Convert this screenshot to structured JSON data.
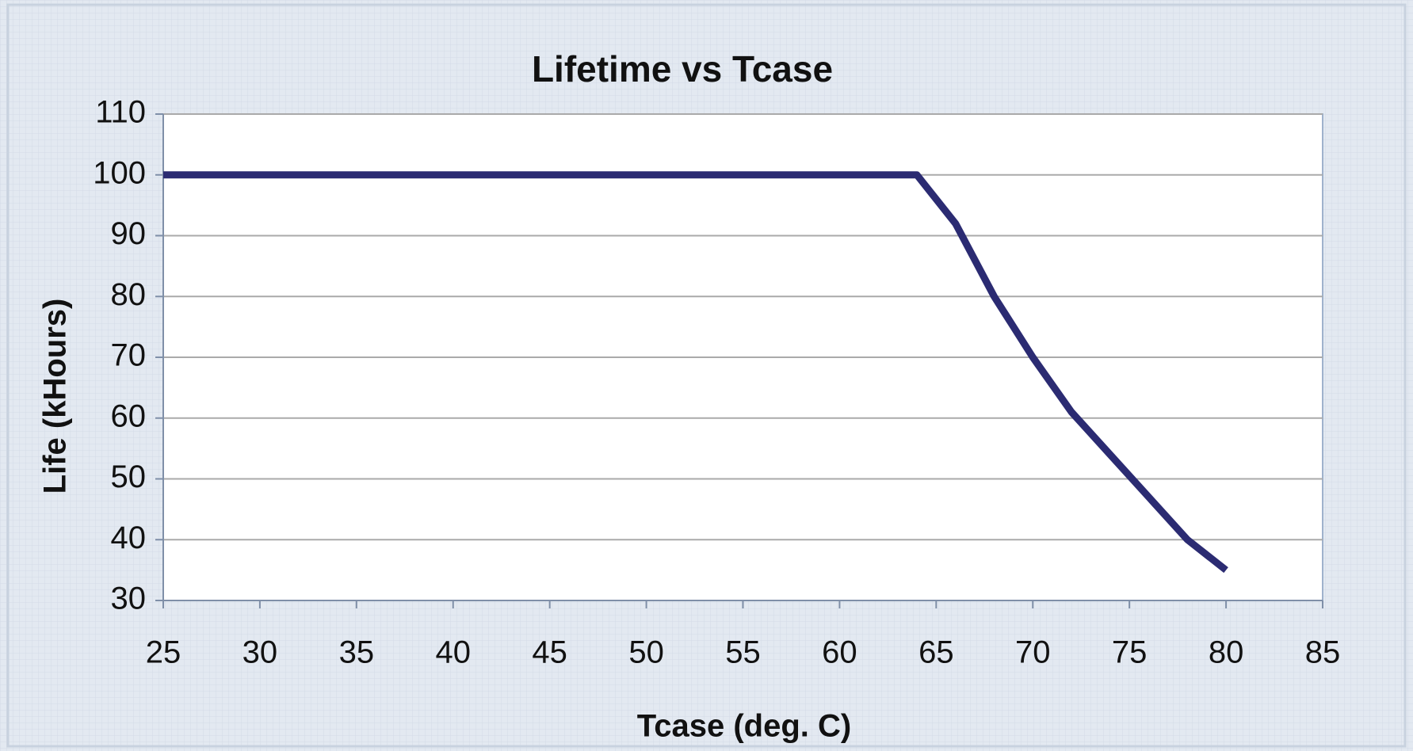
{
  "chart_data": {
    "type": "line",
    "title": "Lifetime vs Tcase",
    "x_label": "Tcase (deg. C)",
    "y_label": "Life (kHours)",
    "x": [
      25,
      64,
      66,
      68,
      70,
      72,
      74,
      76,
      78,
      80
    ],
    "series": [
      {
        "color": "#2b2b72",
        "values": [
          100,
          100,
          92,
          80,
          70,
          61,
          54,
          47,
          40,
          35
        ]
      }
    ],
    "xlim": [
      25,
      85
    ],
    "xticks": [
      25,
      30,
      35,
      40,
      45,
      50,
      55,
      60,
      65,
      70,
      75,
      80,
      85
    ],
    "ylim": [
      30,
      110
    ],
    "yticks": [
      30,
      40,
      50,
      60,
      70,
      80,
      90,
      100,
      110
    ],
    "grid": true
  }
}
